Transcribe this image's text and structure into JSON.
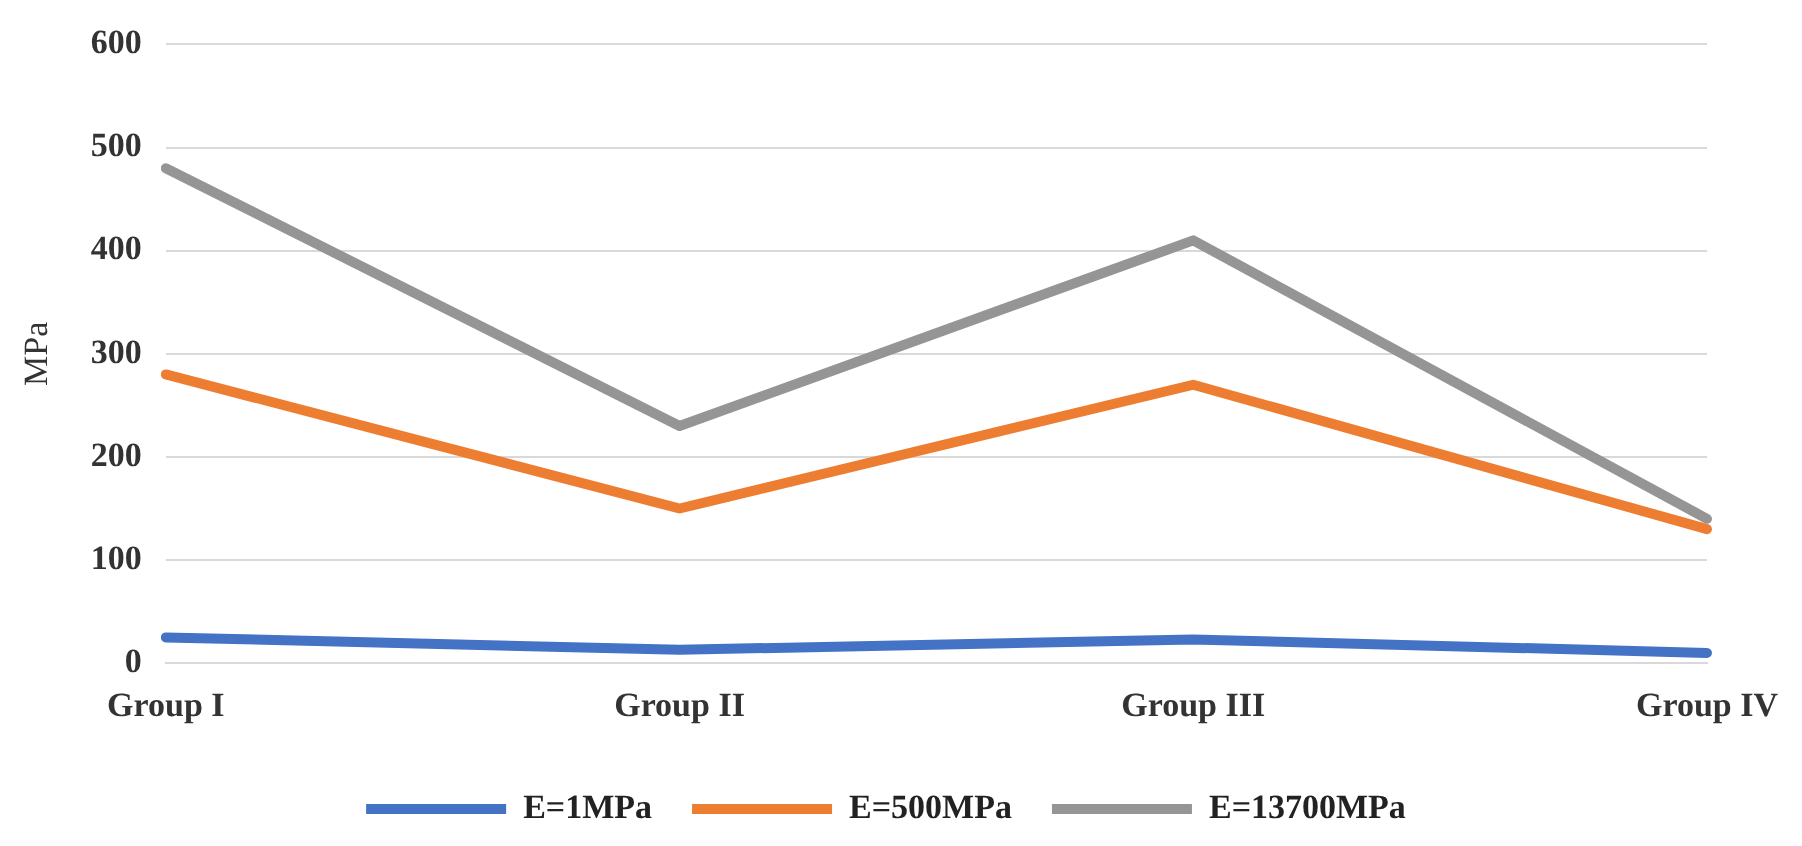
{
  "chart_data": {
    "type": "line",
    "ylabel": "MPa",
    "categories": [
      "Group I",
      "Group II",
      "Group III",
      "Group IV"
    ],
    "series": [
      {
        "name": "E=1MPa",
        "color": "#4472c4",
        "values": [
          25,
          13,
          23,
          10
        ]
      },
      {
        "name": "E=500MPa",
        "color": "#ed7d31",
        "values": [
          280,
          150,
          270,
          130
        ]
      },
      {
        "name": "E=13700MPa",
        "color": "#959595",
        "values": [
          480,
          230,
          410,
          140
        ]
      }
    ],
    "ylim": [
      0,
      600
    ],
    "yticks": [
      0,
      100,
      200,
      300,
      400,
      500,
      600
    ],
    "grid": "y",
    "legend": "bottom",
    "marker": "none",
    "line_style": "solid"
  }
}
